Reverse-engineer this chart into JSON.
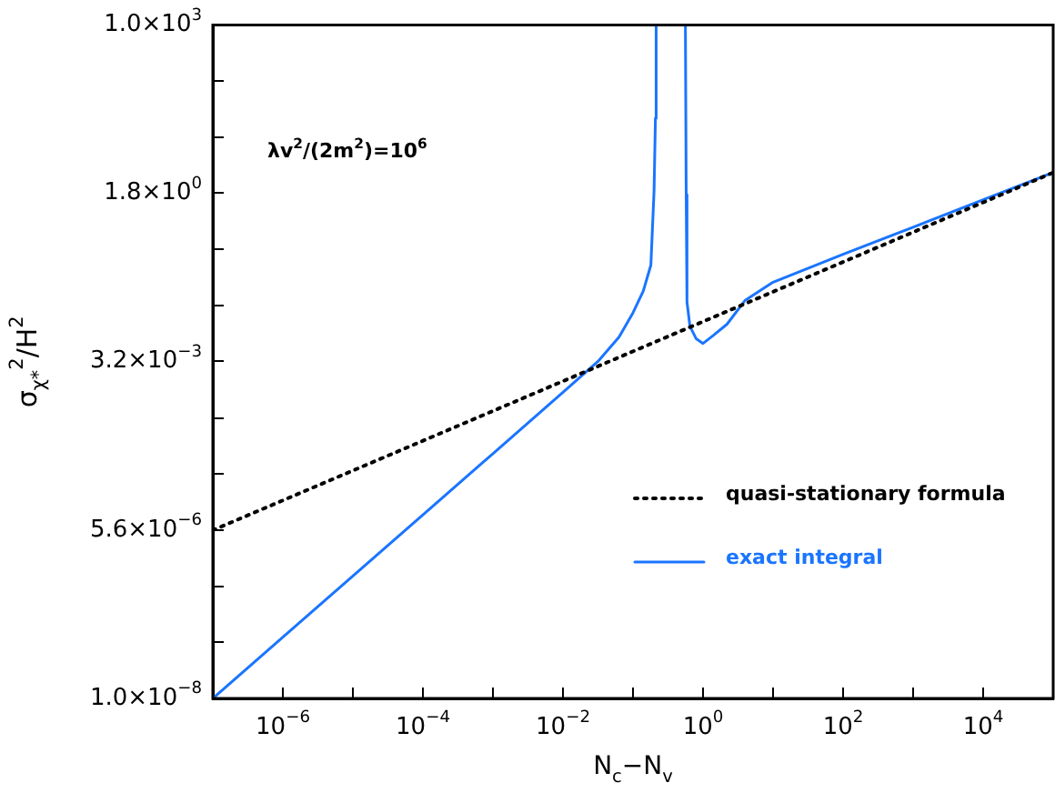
{
  "chart_data": {
    "type": "line",
    "xlabel": "N$_{c}$−N$_{v}$",
    "ylabel": "σ$_{χ*}$$^{2}$/H$^{2}$",
    "annotations": [
      "λv$^{2}$/(2m$^{2}$)=10$^{6}$"
    ],
    "log": "xy",
    "grid": false,
    "legend": "bottom right",
    "xlim": [
      1e-07,
      100000
    ],
    "xticks": [
      {
        "value": 1e-06,
        "label": "10$^{−6}$"
      },
      {
        "value": 1e-05,
        "label": null
      },
      {
        "value": 0.0001,
        "label": "10$^{−4}$"
      },
      {
        "value": 0.001,
        "label": null
      },
      {
        "value": 0.01,
        "label": "10$^{−2}$"
      },
      {
        "value": 0.1,
        "label": null
      },
      {
        "value": 1,
        "label": "10$^{0}$"
      },
      {
        "value": 10,
        "label": null
      },
      {
        "value": 100,
        "label": "10$^{2}$"
      },
      {
        "value": 1000,
        "label": null
      },
      {
        "value": 10000,
        "label": "10$^{4}$"
      }
    ],
    "ylim": [
      1e-08,
      1000
    ],
    "yticks": [
      {
        "value": 1e-08,
        "label": "1.0×10$^{−8}$"
      },
      {
        "value": 8.254e-08,
        "label": null
      },
      {
        "value": 6.813e-07,
        "label": null
      },
      {
        "value": 5.6e-06,
        "label": "5.6×10$^{−6}$"
      },
      {
        "value": 4.642e-05,
        "label": null
      },
      {
        "value": 0.0003831,
        "label": null
      },
      {
        "value": 0.0032,
        "label": "3.2×10$^{−3}$"
      },
      {
        "value": 0.0261,
        "label": null
      },
      {
        "value": 0.2154,
        "label": null
      },
      {
        "value": 1.8,
        "label": "1.8×10$^{0}$"
      },
      {
        "value": 14.68,
        "label": null
      },
      {
        "value": 121.2,
        "label": null
      },
      {
        "value": 1000,
        "label": "1.0×10$^{3}$"
      }
    ],
    "series": [
      {
        "name": "quasi-stationary formula",
        "color": "#000000",
        "line_style": "dotted",
        "x": [
          1e-07,
          100000
        ],
        "values": [
          5.6e-06,
          3.9
        ]
      },
      {
        "name": "exact integral",
        "color": "#1a75ff",
        "line_style": "solid",
        "x": [
          1e-07,
          1e-06,
          1e-05,
          0.0001,
          0.001,
          0.01,
          0.0316,
          0.063,
          0.1,
          0.14,
          0.18,
          0.2,
          0.209,
          0.214,
          0.4,
          0.56,
          0.575,
          0.59,
          0.65,
          0.8,
          1,
          1.4,
          2.2,
          4,
          10,
          100,
          1000,
          10000,
          100000
        ],
        "values": [
          1e-08,
          1e-07,
          1e-06,
          1e-05,
          0.0001,
          0.001,
          0.0032,
          0.008,
          0.02,
          0.045,
          0.12,
          2,
          30,
          1000,
          null,
          1000,
          1.7,
          0.03,
          0.012,
          0.0075,
          0.0063,
          0.0085,
          0.013,
          0.032,
          0.063,
          0.18,
          0.5,
          1.4,
          3.9
        ]
      }
    ]
  }
}
